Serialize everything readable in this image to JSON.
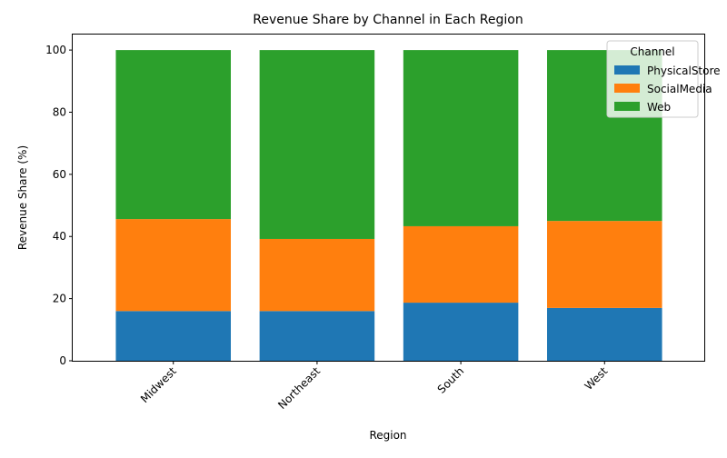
{
  "chart_data": {
    "type": "bar",
    "stacked": true,
    "title": "Revenue Share by Channel in Each Region",
    "xlabel": "Region",
    "ylabel": "Revenue Share (%)",
    "categories": [
      "Midwest",
      "Northeast",
      "South",
      "West"
    ],
    "ylim": [
      0,
      105
    ],
    "yticks": [
      0,
      20,
      40,
      60,
      80,
      100
    ],
    "grid": false,
    "legend": {
      "title": "Channel",
      "placement": "top-right"
    },
    "series": [
      {
        "name": "PhysicalStore",
        "color": "#1f77b4",
        "values": [
          16.0,
          16.0,
          18.7,
          17.0
        ]
      },
      {
        "name": "SocialMedia",
        "color": "#ff7f0e",
        "values": [
          29.6,
          23.2,
          24.6,
          28.0
        ]
      },
      {
        "name": "Web",
        "color": "#2ca02c",
        "values": [
          54.4,
          60.8,
          56.7,
          55.0
        ]
      }
    ]
  }
}
